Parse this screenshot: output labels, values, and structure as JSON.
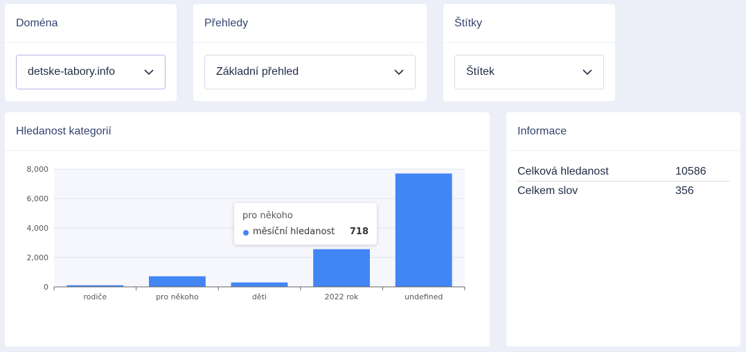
{
  "domain_card": {
    "title": "Doména",
    "selected": "detske-tabory.info"
  },
  "reports_card": {
    "title": "Přehledy",
    "selected": "Základní přehled"
  },
  "tags_card": {
    "title": "Štítky",
    "selected": "Štítek"
  },
  "chart_card": {
    "title": "Hledanost kategorií"
  },
  "info_card": {
    "title": "Informace",
    "rows": [
      {
        "label": "Celková hledanost",
        "value": "10586"
      },
      {
        "label": "Celkem slov",
        "value": "356"
      }
    ]
  },
  "tooltip": {
    "category": "pro někoho",
    "series": "měsíční hledanost",
    "value": "718"
  },
  "colors": {
    "bar": "#4285f4",
    "accent_border": "#b3b6ea"
  },
  "chart_data": {
    "type": "bar",
    "categories": [
      "rodiče",
      "pro někoho",
      "děti",
      "2022 rok",
      "undefined"
    ],
    "series": [
      {
        "name": "měsíční hledanost",
        "values": [
          110,
          718,
          300,
          2560,
          7700
        ]
      }
    ],
    "ylim": [
      0,
      8000
    ],
    "yticks": [
      0,
      2000,
      4000,
      6000,
      8000
    ],
    "ytick_labels": [
      "0",
      "2,000",
      "4,000",
      "6,000",
      "8,000"
    ],
    "grid": true,
    "highlight_category": "pro někoho"
  }
}
